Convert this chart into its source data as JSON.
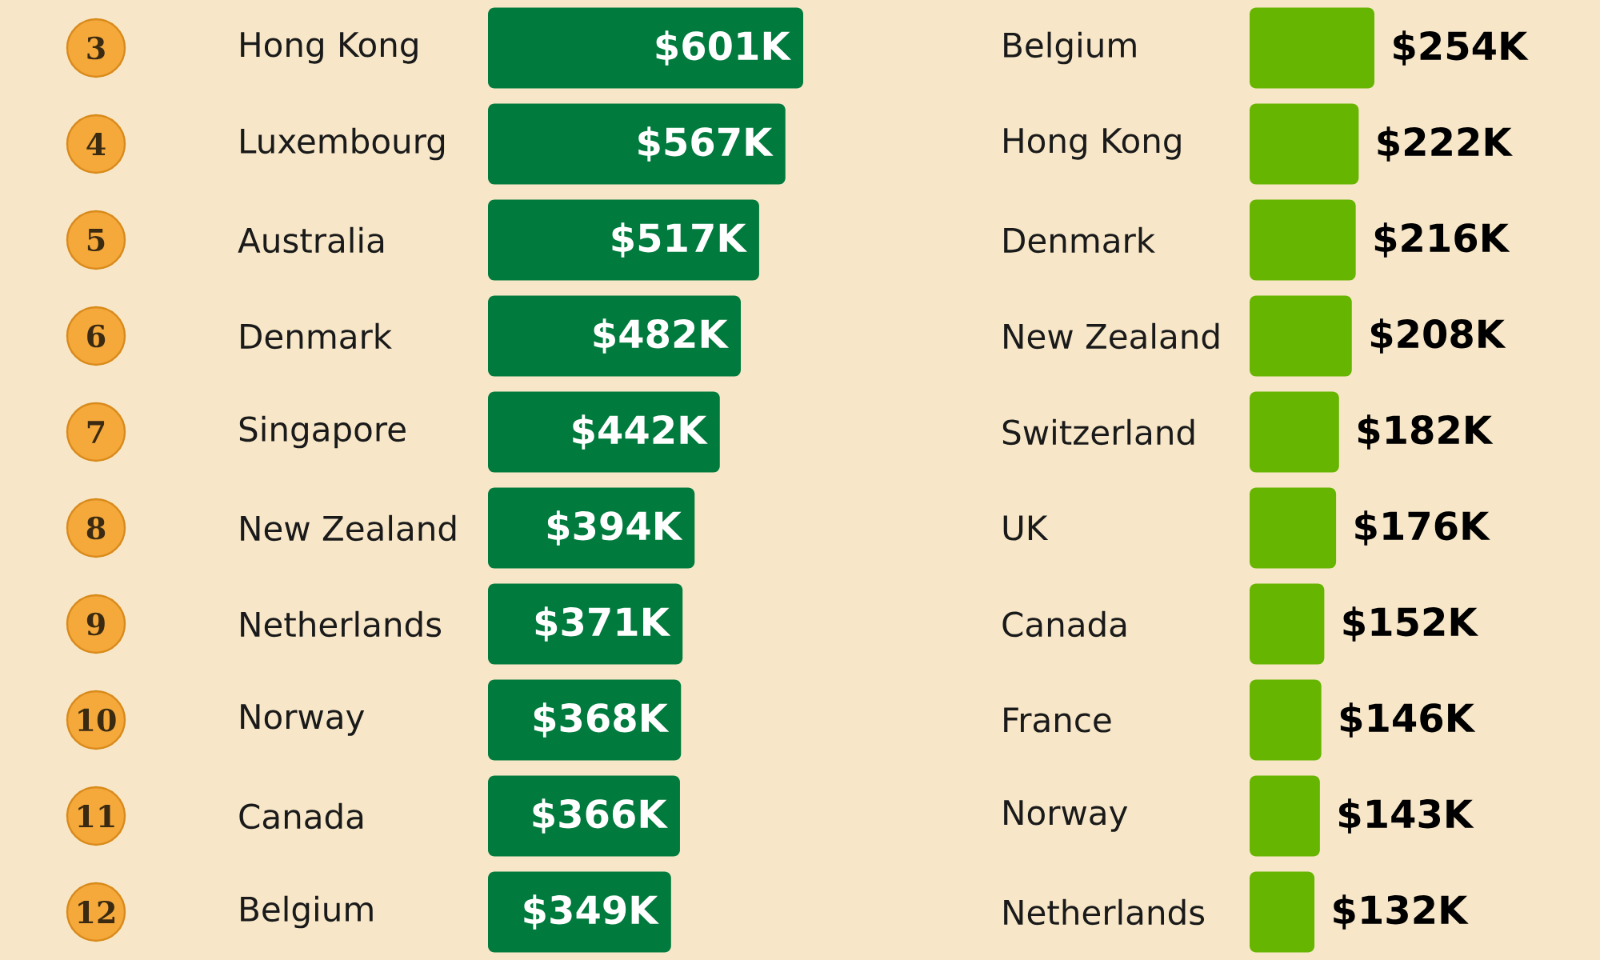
{
  "chart_data": [
    {
      "type": "bar",
      "orientation": "horizontal",
      "categories": [
        "Hong Kong",
        "Luxembourg",
        "Australia",
        "Denmark",
        "Singapore",
        "New Zealand",
        "Netherlands",
        "Norway",
        "Canada",
        "Belgium"
      ],
      "values": [
        601,
        567,
        517,
        482,
        442,
        394,
        371,
        368,
        366,
        349
      ],
      "value_labels": [
        "$601K",
        "$567K",
        "$517K",
        "$482K",
        "$442K",
        "$394K",
        "$371K",
        "$368K",
        "$366K",
        "$349K"
      ],
      "color": "#007a3d",
      "tick_labels": "y",
      "annotations": [
        "3",
        "4",
        "5",
        "6",
        "7",
        "8",
        "9",
        "10",
        "11",
        "12"
      ]
    },
    {
      "type": "bar",
      "orientation": "horizontal",
      "categories": [
        "Belgium",
        "Hong Kong",
        "Denmark",
        "New Zealand",
        "Switzerland",
        "UK",
        "Canada",
        "France",
        "Norway",
        "Netherlands"
      ],
      "values": [
        254,
        222,
        216,
        208,
        182,
        176,
        152,
        146,
        143,
        132
      ],
      "value_labels": [
        "$254K",
        "$222K",
        "$216K",
        "$208K",
        "$182K",
        "$176K",
        "$152K",
        "$146K",
        "$143K",
        "$132K"
      ],
      "color": "#66b500",
      "tick_labels": "y"
    }
  ]
}
